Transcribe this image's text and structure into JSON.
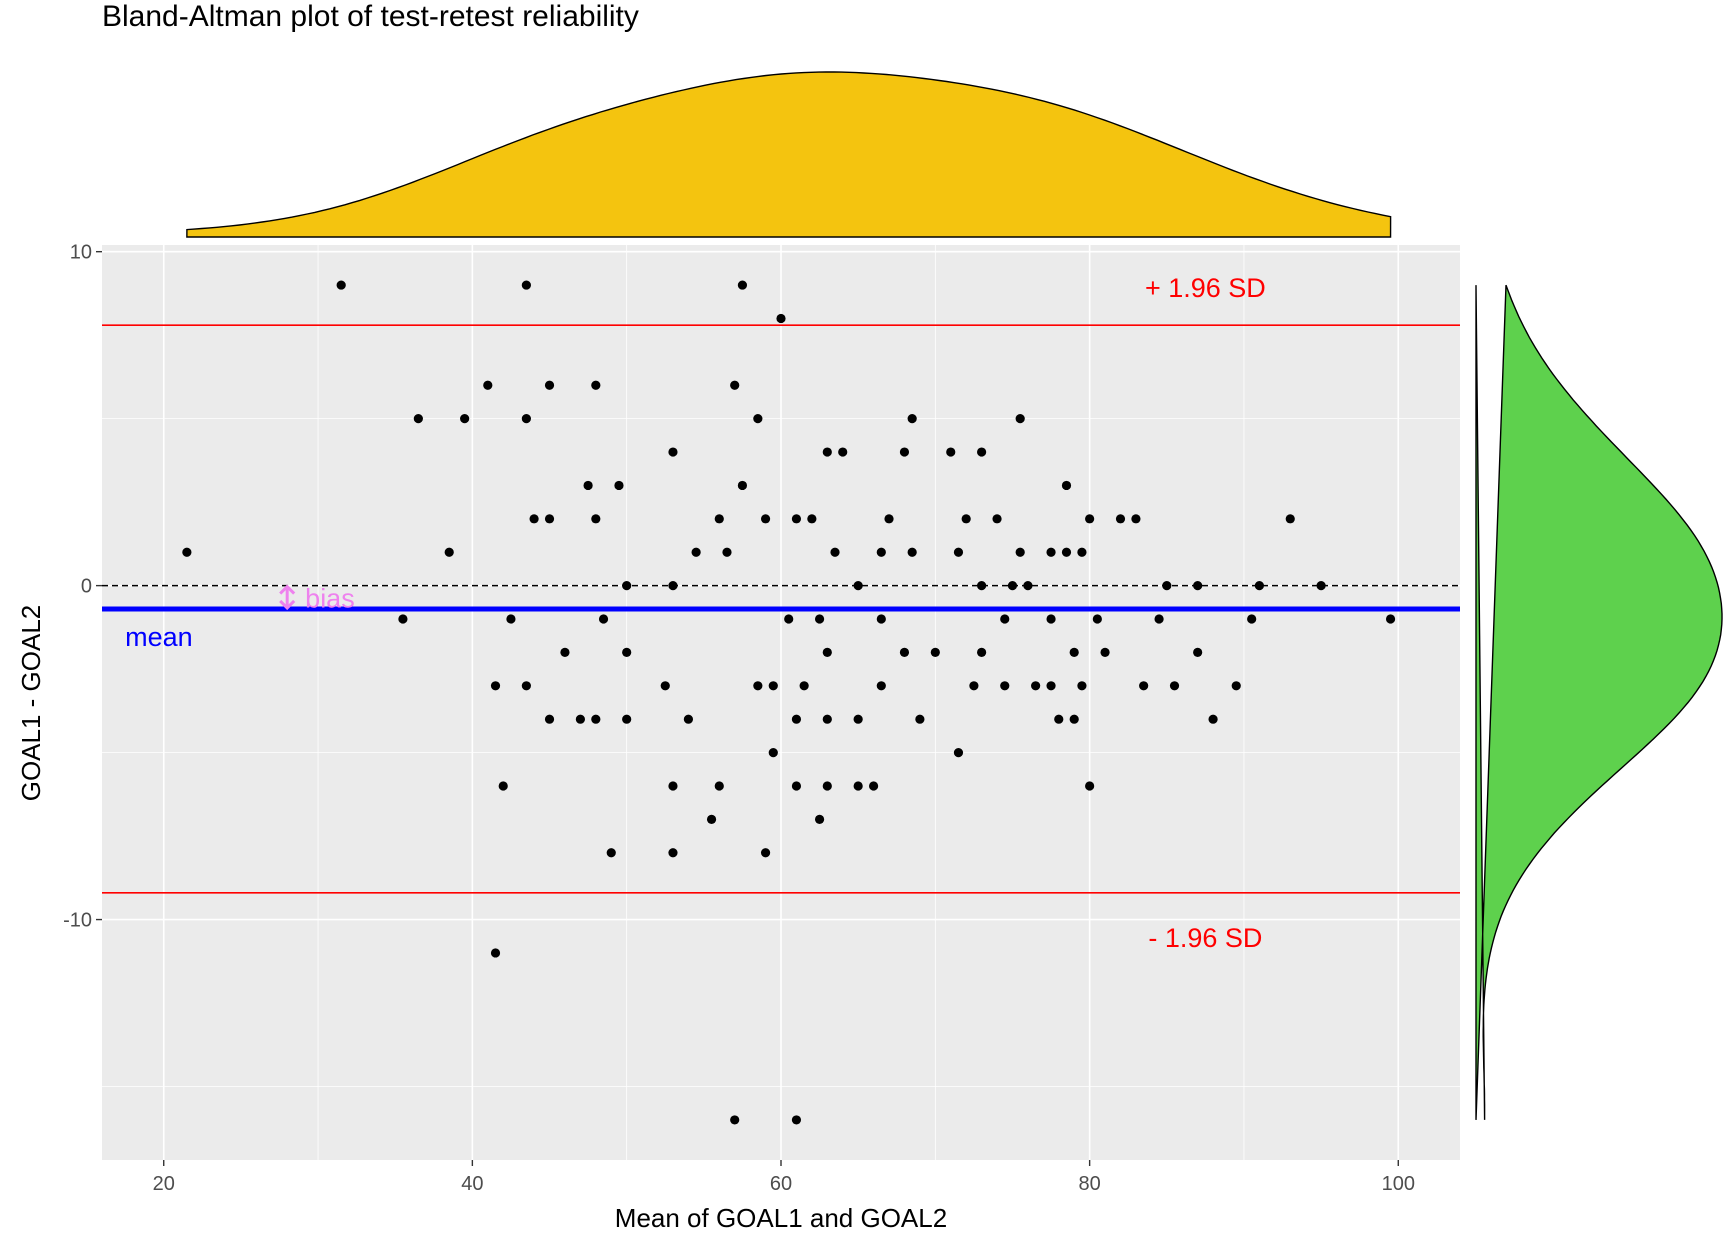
{
  "chart_data": {
    "type": "scatter",
    "title": "Bland-Altman plot of test-retest reliability",
    "xlabel": "Mean of GOAL1 and GOAL2",
    "ylabel": "GOAL1 - GOAL2",
    "xlim": [
      16,
      104
    ],
    "ylim": [
      -17.2,
      10.2
    ],
    "x_ticks": [
      20,
      40,
      60,
      80,
      100
    ],
    "x_tick_labels": [
      "20",
      "40",
      "60",
      "80",
      "100"
    ],
    "y_ticks": [
      10,
      0,
      -10
    ],
    "y_tick_labels": [
      "10",
      "0",
      "-10"
    ],
    "grid": true,
    "reference_lines": {
      "zero": 0,
      "mean": -0.7,
      "upper_loa": 7.8,
      "lower_loa": -9.2
    },
    "annotations": {
      "upper": "+ 1.96 SD",
      "lower": "- 1.96 SD",
      "mean": "mean",
      "bias": "bias"
    },
    "colors": {
      "panel": "#ebebeb",
      "grid": "#ffffff",
      "points": "#000000",
      "mean_line": "#0000ff",
      "loa_line": "#ff0000",
      "bias": "#ee82ee",
      "top_density": "#f4c40f",
      "right_density": "#5ed14d"
    },
    "points": [
      [
        21.5,
        1
      ],
      [
        31.5,
        9
      ],
      [
        35.5,
        -1
      ],
      [
        36.5,
        5
      ],
      [
        38.5,
        1
      ],
      [
        39.5,
        5
      ],
      [
        41,
        6
      ],
      [
        41.5,
        -3
      ],
      [
        41.5,
        -11
      ],
      [
        42,
        -6
      ],
      [
        42.5,
        -1
      ],
      [
        43.5,
        9
      ],
      [
        43.5,
        5
      ],
      [
        43.5,
        -3
      ],
      [
        44,
        2
      ],
      [
        45,
        6
      ],
      [
        45,
        2
      ],
      [
        45,
        -4
      ],
      [
        46,
        -2
      ],
      [
        47,
        -4
      ],
      [
        47.5,
        3
      ],
      [
        48,
        6
      ],
      [
        48,
        2
      ],
      [
        48,
        -4
      ],
      [
        48.5,
        -1
      ],
      [
        49,
        -8
      ],
      [
        49.5,
        3
      ],
      [
        50,
        0
      ],
      [
        50,
        -2
      ],
      [
        50,
        -4
      ],
      [
        52.5,
        -3
      ],
      [
        53,
        4
      ],
      [
        53,
        0
      ],
      [
        53,
        -6
      ],
      [
        53,
        -8
      ],
      [
        54,
        -4
      ],
      [
        54.5,
        1
      ],
      [
        55.5,
        -7
      ],
      [
        56,
        2
      ],
      [
        56,
        -6
      ],
      [
        56.5,
        1
      ],
      [
        57,
        6
      ],
      [
        57,
        -16
      ],
      [
        57.5,
        9
      ],
      [
        57.5,
        3
      ],
      [
        58.5,
        5
      ],
      [
        58.5,
        -3
      ],
      [
        59,
        2
      ],
      [
        59,
        -8
      ],
      [
        59.5,
        -3
      ],
      [
        59.5,
        -5
      ],
      [
        60,
        8
      ],
      [
        60.5,
        -1
      ],
      [
        61,
        2
      ],
      [
        61,
        -4
      ],
      [
        61,
        -6
      ],
      [
        61,
        -16
      ],
      [
        61.5,
        -3
      ],
      [
        62,
        2
      ],
      [
        62.5,
        -1
      ],
      [
        62.5,
        -7
      ],
      [
        63,
        4
      ],
      [
        63,
        -2
      ],
      [
        63,
        -4
      ],
      [
        63,
        -6
      ],
      [
        63.5,
        1
      ],
      [
        64,
        4
      ],
      [
        65,
        0
      ],
      [
        65,
        -4
      ],
      [
        65,
        -6
      ],
      [
        66,
        -6
      ],
      [
        66.5,
        1
      ],
      [
        66.5,
        -1
      ],
      [
        66.5,
        -3
      ],
      [
        67,
        2
      ],
      [
        68,
        4
      ],
      [
        68,
        -2
      ],
      [
        68.5,
        5
      ],
      [
        68.5,
        1
      ],
      [
        69,
        -4
      ],
      [
        70,
        -2
      ],
      [
        71,
        4
      ],
      [
        71.5,
        1
      ],
      [
        71.5,
        -5
      ],
      [
        72,
        2
      ],
      [
        72.5,
        -3
      ],
      [
        73,
        4
      ],
      [
        73,
        0
      ],
      [
        73,
        -2
      ],
      [
        74,
        2
      ],
      [
        74.5,
        -1
      ],
      [
        74.5,
        -3
      ],
      [
        75,
        0
      ],
      [
        75.5,
        5
      ],
      [
        75.5,
        1
      ],
      [
        76,
        0
      ],
      [
        76.5,
        -3
      ],
      [
        77.5,
        1
      ],
      [
        77.5,
        -1
      ],
      [
        77.5,
        -3
      ],
      [
        78,
        -4
      ],
      [
        78.5,
        3
      ],
      [
        78.5,
        1
      ],
      [
        79,
        -2
      ],
      [
        79,
        -4
      ],
      [
        79.5,
        1
      ],
      [
        79.5,
        -3
      ],
      [
        80,
        2
      ],
      [
        80,
        -6
      ],
      [
        80.5,
        -1
      ],
      [
        81,
        -2
      ],
      [
        82,
        2
      ],
      [
        83,
        2
      ],
      [
        83.5,
        -3
      ],
      [
        84.5,
        -1
      ],
      [
        85,
        0
      ],
      [
        85.5,
        -3
      ],
      [
        87,
        0
      ],
      [
        87,
        -2
      ],
      [
        88,
        -4
      ],
      [
        89.5,
        -3
      ],
      [
        90.5,
        -1
      ],
      [
        91,
        0
      ],
      [
        93,
        2
      ],
      [
        95,
        0
      ],
      [
        99.5,
        -1
      ]
    ]
  }
}
